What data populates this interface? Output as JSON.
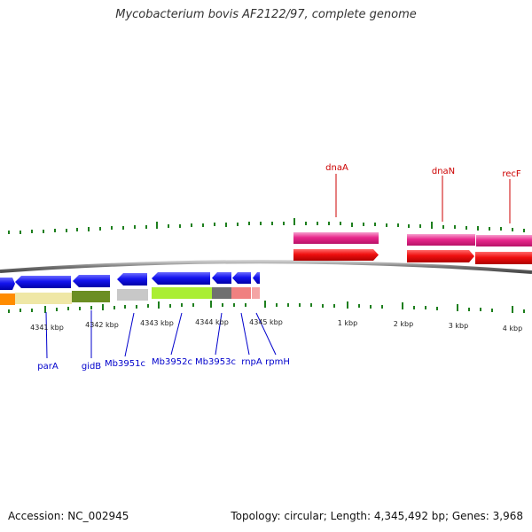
{
  "title": "Mycobacterium bovis AF2122/97, complete genome",
  "footer": {
    "accession": "Accession: NC_002945",
    "topology": "Topology: circular; Length: 4,345,492 bp; Genes: 3,968"
  },
  "scale_labels": [
    "4341 kbp",
    "4342 kbp",
    "4343 kbp",
    "4344 kbp",
    "4345 kbp",
    "1 kbp",
    "2 kbp",
    "3 kbp",
    "4 kbp"
  ],
  "gene_labels_top": [
    "dnaA",
    "dnaN",
    "recF"
  ],
  "gene_labels_bottom": [
    "parA",
    "gidB",
    "Mb3951c",
    "Mb3952c",
    "Mb3953c",
    "rnpA",
    "rpmH"
  ],
  "colors": {
    "top_label": "#cc0000",
    "bottom_label": "#0000cc",
    "tick": "#1e7f1e",
    "backbone": "#6e6e6e",
    "reverse_gene": "#1010ee",
    "forward_gene": "#ee1010",
    "forward_feature": "#e8288c"
  }
}
